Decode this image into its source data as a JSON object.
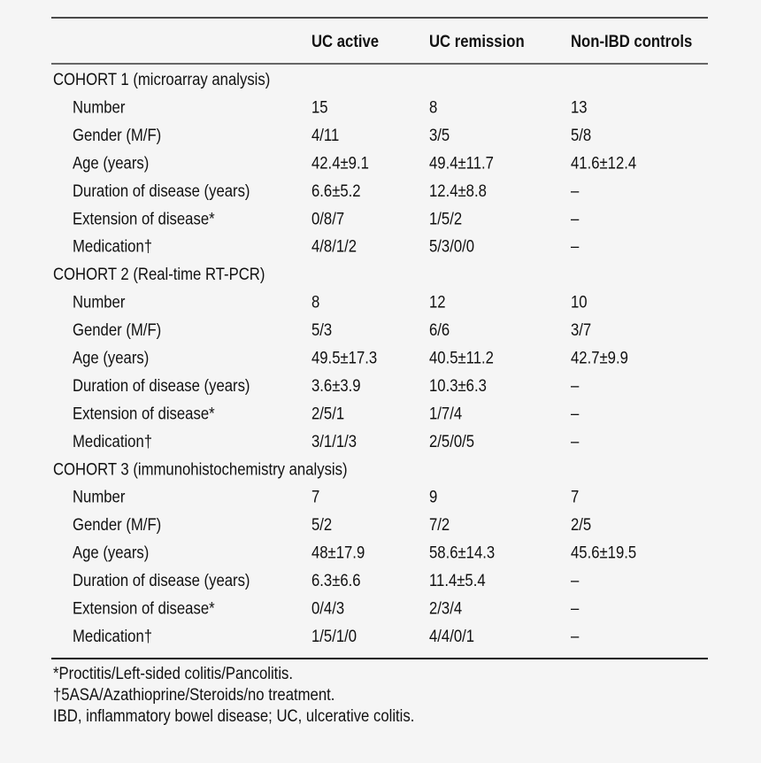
{
  "table": {
    "columns": [
      "UC active",
      "UC remission",
      "Non-IBD controls"
    ],
    "sections": [
      {
        "title": "COHORT 1 (microarray analysis)",
        "rows": [
          [
            "Number",
            "15",
            "8",
            "13"
          ],
          [
            "Gender (M/F)",
            "4/11",
            "3/5",
            "5/8"
          ],
          [
            "Age (years)",
            "42.4±9.1",
            "49.4±11.7",
            "41.6±12.4"
          ],
          [
            "Duration of disease (years)",
            "6.6±5.2",
            "12.4±8.8",
            "–"
          ],
          [
            "Extension of disease*",
            "0/8/7",
            "1/5/2",
            "–"
          ],
          [
            "Medication†",
            "4/8/1/2",
            "5/3/0/0",
            "–"
          ]
        ]
      },
      {
        "title": "COHORT 2 (Real-time RT-PCR)",
        "rows": [
          [
            "Number",
            "8",
            "12",
            "10"
          ],
          [
            "Gender (M/F)",
            "5/3",
            "6/6",
            "3/7"
          ],
          [
            "Age (years)",
            "49.5±17.3",
            "40.5±11.2",
            "42.7±9.9"
          ],
          [
            "Duration of disease (years)",
            "3.6±3.9",
            "10.3±6.3",
            "–"
          ],
          [
            "Extension of disease*",
            "2/5/1",
            "1/7/4",
            "–"
          ],
          [
            "Medication†",
            "3/1/1/3",
            "2/5/0/5",
            "–"
          ]
        ]
      },
      {
        "title": "COHORT 3 (immunohistochemistry analysis)",
        "rows": [
          [
            "Number",
            "7",
            "9",
            "7"
          ],
          [
            "Gender (M/F)",
            "5/2",
            "7/2",
            "2/5"
          ],
          [
            "Age (years)",
            "48±17.9",
            "58.6±14.3",
            "45.6±19.5"
          ],
          [
            "Duration of disease (years)",
            "6.3±6.6",
            "11.4±5.4",
            "–"
          ],
          [
            "Extension of disease*",
            "0/4/3",
            "2/3/4",
            "–"
          ],
          [
            "Medication†",
            "1/5/1/0",
            "4/4/0/1",
            "–"
          ]
        ]
      }
    ]
  },
  "footnotes": [
    "*Proctitis/Left-sided colitis/Pancolitis.",
    "†5ASA/Azathioprine/Steroids/no treatment.",
    "IBD, inflammatory bowel disease; UC, ulcerative colitis."
  ]
}
